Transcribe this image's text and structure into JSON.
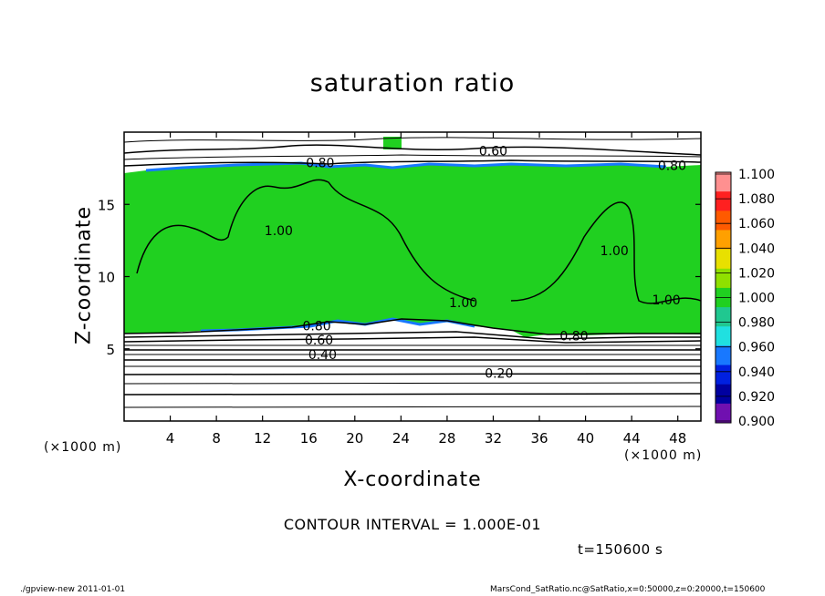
{
  "chart_data": {
    "type": "heatmap",
    "title": "saturation ratio",
    "xlabel": "X-coordinate",
    "ylabel": "Z-coordinate",
    "x_unit": "(×1000 m)",
    "y_unit": "(×1000 m)",
    "xlim": [
      0,
      50
    ],
    "ylim": [
      0,
      20
    ],
    "x_ticks": [
      "4",
      "8",
      "12",
      "16",
      "20",
      "24",
      "28",
      "32",
      "36",
      "40",
      "44",
      "48"
    ],
    "y_ticks": [
      "5",
      "10",
      "15"
    ],
    "colorbar": {
      "levels": [
        "1.100",
        "1.080",
        "1.060",
        "1.040",
        "1.020",
        "1.000",
        "0.980",
        "0.960",
        "0.940",
        "0.920",
        "0.900"
      ],
      "colors": [
        "#ff9090",
        "#ff2020",
        "#ff5a00",
        "#ffa000",
        "#e8e000",
        "#90e000",
        "#20d020",
        "#20c890",
        "#20e0e0",
        "#1878ff",
        "#0020e0",
        "#0000a0",
        "#7010b0"
      ]
    },
    "contour_labels": [
      {
        "text": "0.60",
        "x": 32,
        "y": 18.7
      },
      {
        "text": "0.80",
        "x": 17,
        "y": 17.9
      },
      {
        "text": "0.80",
        "x": 47.5,
        "y": 17.7
      },
      {
        "text": "1.00",
        "x": 13.4,
        "y": 13.2
      },
      {
        "text": "1.00",
        "x": 42.5,
        "y": 11.8
      },
      {
        "text": "1.00",
        "x": 47,
        "y": 8.4
      },
      {
        "text": "1.00",
        "x": 29.4,
        "y": 8.2
      },
      {
        "text": "0.80",
        "x": 16.7,
        "y": 6.6
      },
      {
        "text": "0.80",
        "x": 39,
        "y": 5.9
      },
      {
        "text": "0.60",
        "x": 16.9,
        "y": 5.6
      },
      {
        "text": "0.40",
        "x": 17.2,
        "y": 4.6
      },
      {
        "text": "0.20",
        "x": 32.5,
        "y": 3.3
      }
    ],
    "contour_interval": "CONTOUR INTERVAL = 1.000E-01",
    "time": "t=150600 s"
  },
  "footer": {
    "left": "./gpview-new   2011-01-01",
    "right": "MarsCond_SatRatio.nc@SatRatio,x=0:50000,z=0:20000,t=150600"
  }
}
